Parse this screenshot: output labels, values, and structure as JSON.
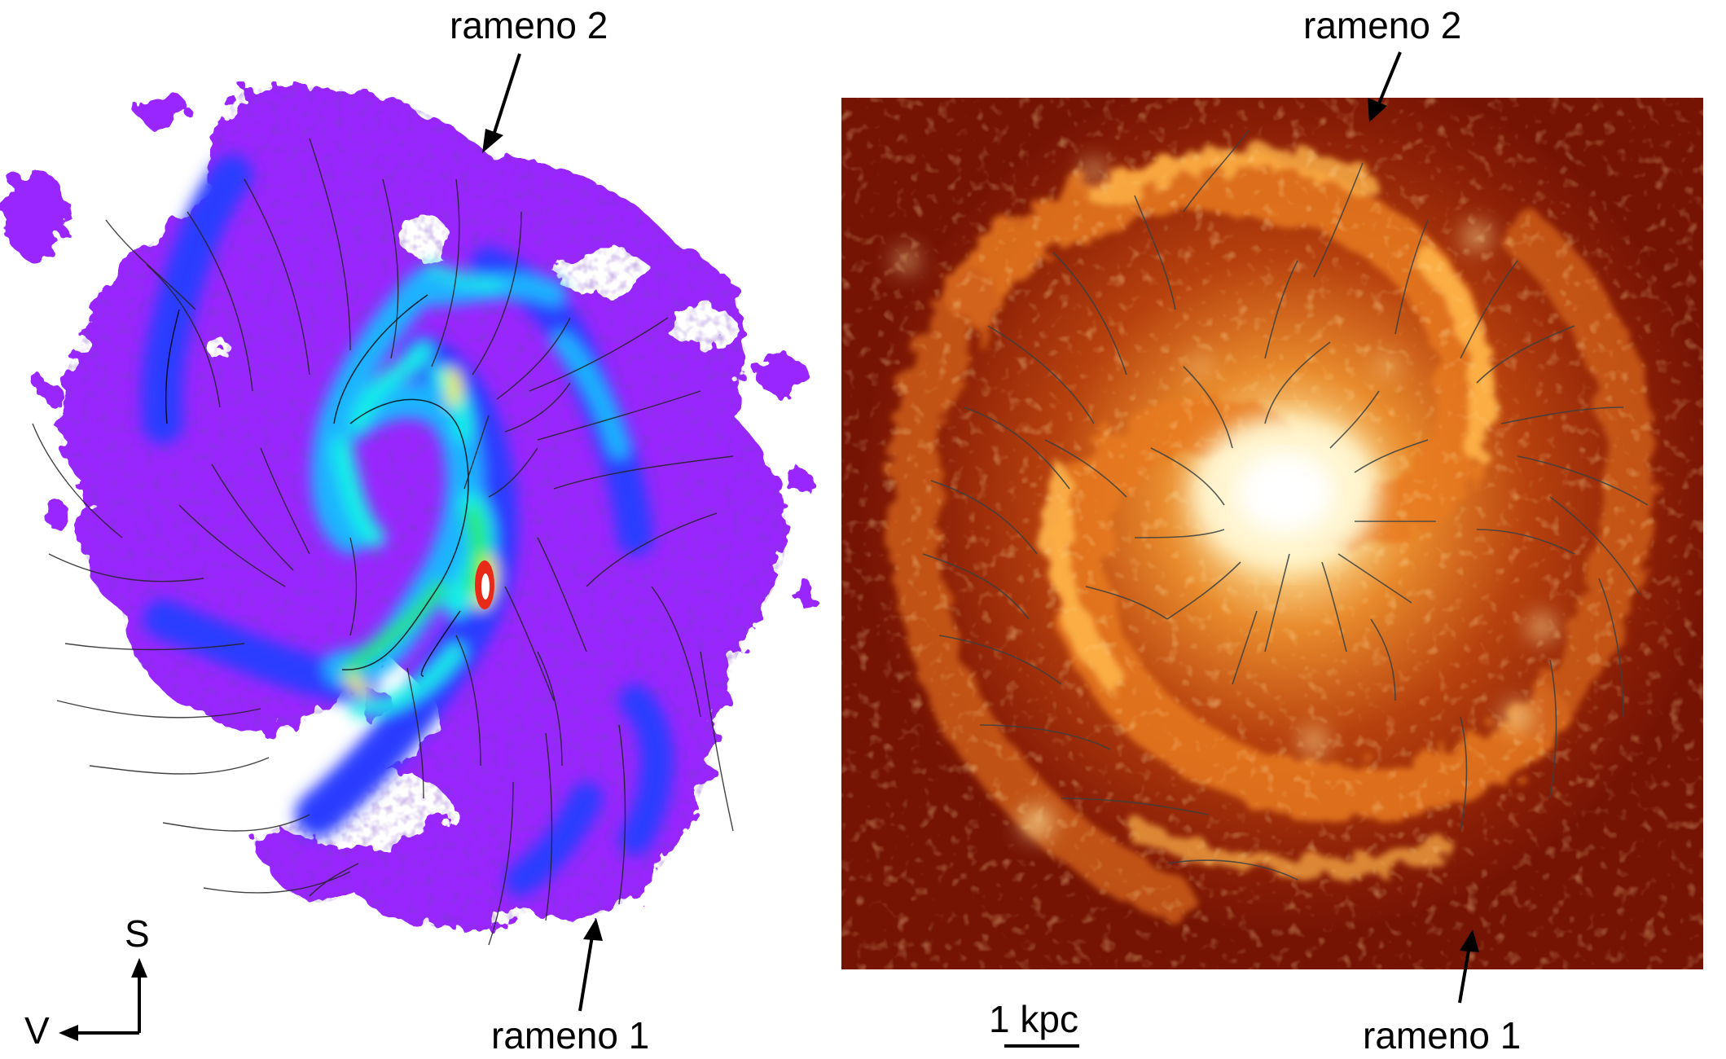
{
  "figure": {
    "left_panel": {
      "arm2_label": "rameno 2",
      "arm1_label": "rameno 1",
      "palette": [
        "#9a28ff",
        "#6a1cf0",
        "#2a3cff",
        "#1fb4ff",
        "#16f0e6",
        "#2ce850",
        "#f6f012",
        "#e82a18",
        "#ffffff"
      ]
    },
    "right_panel": {
      "arm2_label": "rameno 2",
      "arm1_label": "rameno 1",
      "palette": [
        "#7a1404",
        "#a8300a",
        "#dc6a14",
        "#ff9a2a",
        "#ffd066",
        "#fff3c8"
      ]
    },
    "compass": {
      "up_label": "S",
      "left_label": "V"
    },
    "scalebar": {
      "label": "1 kpc"
    }
  }
}
